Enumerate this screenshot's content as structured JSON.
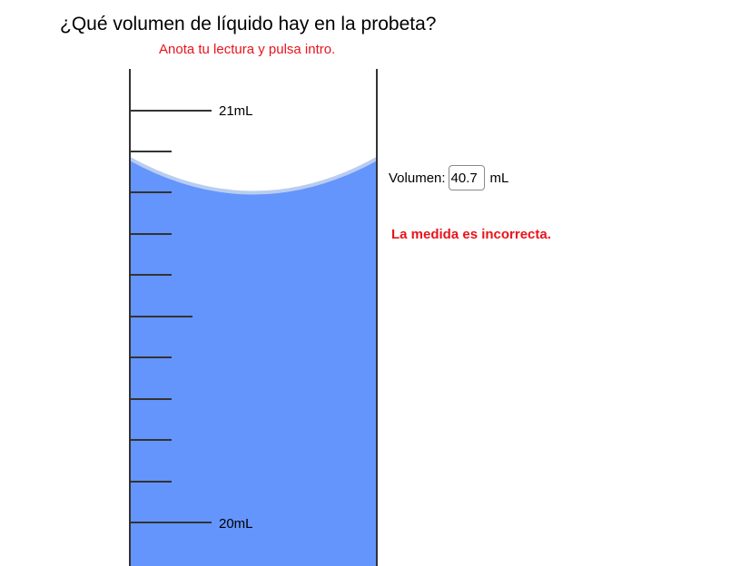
{
  "header": {
    "question": "¿Qué volumen de líquido hay en la probeta?",
    "instruction": "Anota tu lectura y pulsa intro."
  },
  "cylinder": {
    "tick_labels": {
      "top": "21mL",
      "bottom": "20mL"
    },
    "liquid_color": "#6495fc",
    "meniscus_color": "#b8cdf0",
    "wall_color": "#333333"
  },
  "answer": {
    "label": "Volumen:",
    "value": "40.7",
    "unit": "mL"
  },
  "feedback": {
    "text": "La medida es incorrecta.",
    "color": "#e8141b"
  }
}
